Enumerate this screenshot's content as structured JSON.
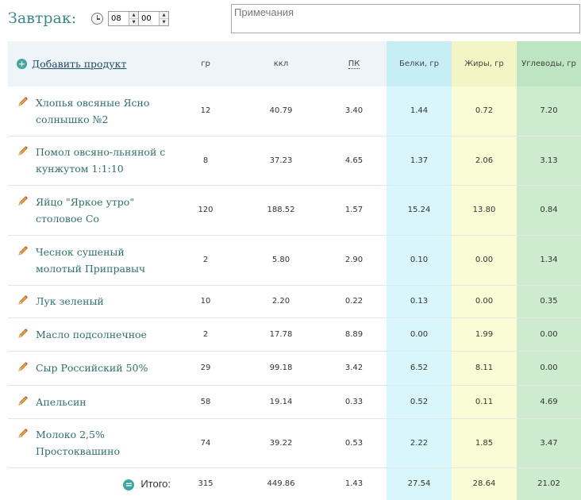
{
  "meal": {
    "title": "Завтрак:",
    "hour": "08",
    "minute": "00",
    "notes_placeholder": "Примечания",
    "spinner_up": "▲",
    "spinner_down": "▼"
  },
  "table": {
    "add_icon": "+",
    "add_label": "Добавить продукт",
    "headers": {
      "grams": "гр",
      "kcal": "ккл",
      "pk": "ПК",
      "protein": "Белки, гр",
      "fat": "Жиры, гр",
      "carbs": "Углеводы, гр"
    },
    "rows": [
      {
        "name": "Хлопья овсяные Ясно солнышко №2",
        "grams": "12",
        "kcal": "40.79",
        "pk": "3.40",
        "protein": "1.44",
        "fat": "0.72",
        "carbs": "7.20"
      },
      {
        "name": "Помол овсяно-льняной с кунжутом 1:1:10",
        "grams": "8",
        "kcal": "37.23",
        "pk": "4.65",
        "protein": "1.37",
        "fat": "2.06",
        "carbs": "3.13"
      },
      {
        "name": "Яйцо \"Яркое утро\" столовое Со",
        "grams": "120",
        "kcal": "188.52",
        "pk": "1.57",
        "protein": "15.24",
        "fat": "13.80",
        "carbs": "0.84"
      },
      {
        "name": "Чеснок сушеный молотый Приправыч",
        "grams": "2",
        "kcal": "5.80",
        "pk": "2.90",
        "protein": "0.10",
        "fat": "0.00",
        "carbs": "1.34"
      },
      {
        "name": "Лук зеленый",
        "grams": "10",
        "kcal": "2.20",
        "pk": "0.22",
        "protein": "0.13",
        "fat": "0.00",
        "carbs": "0.35"
      },
      {
        "name": "Масло подсолнечное",
        "grams": "2",
        "kcal": "17.78",
        "pk": "8.89",
        "protein": "0.00",
        "fat": "1.99",
        "carbs": "0.00"
      },
      {
        "name": "Сыр Российский 50%",
        "grams": "29",
        "kcal": "99.18",
        "pk": "3.42",
        "protein": "6.52",
        "fat": "8.11",
        "carbs": "0.00"
      },
      {
        "name": "Апельсин",
        "grams": "58",
        "kcal": "19.14",
        "pk": "0.33",
        "protein": "0.52",
        "fat": "0.11",
        "carbs": "4.69"
      },
      {
        "name": "Молоко 2,5% Простоквашино",
        "grams": "74",
        "kcal": "39.22",
        "pk": "0.53",
        "protein": "2.22",
        "fat": "1.85",
        "carbs": "3.47"
      }
    ],
    "totals": {
      "icon": "=",
      "label": "Итого:",
      "grams": "315",
      "kcal": "449.86",
      "pk": "1.43",
      "protein": "27.54",
      "fat": "28.64",
      "carbs": "21.02"
    }
  },
  "colors": {
    "protein_column": "#d8f6fb",
    "fat_column": "#fafcd5",
    "carbs_column": "#cdeccf",
    "accent": "#3fa7a2"
  },
  "icons": {
    "edit": "pencil-icon",
    "time": "clock-icon",
    "add": "plus-circle-icon",
    "total": "equals-circle-icon"
  }
}
